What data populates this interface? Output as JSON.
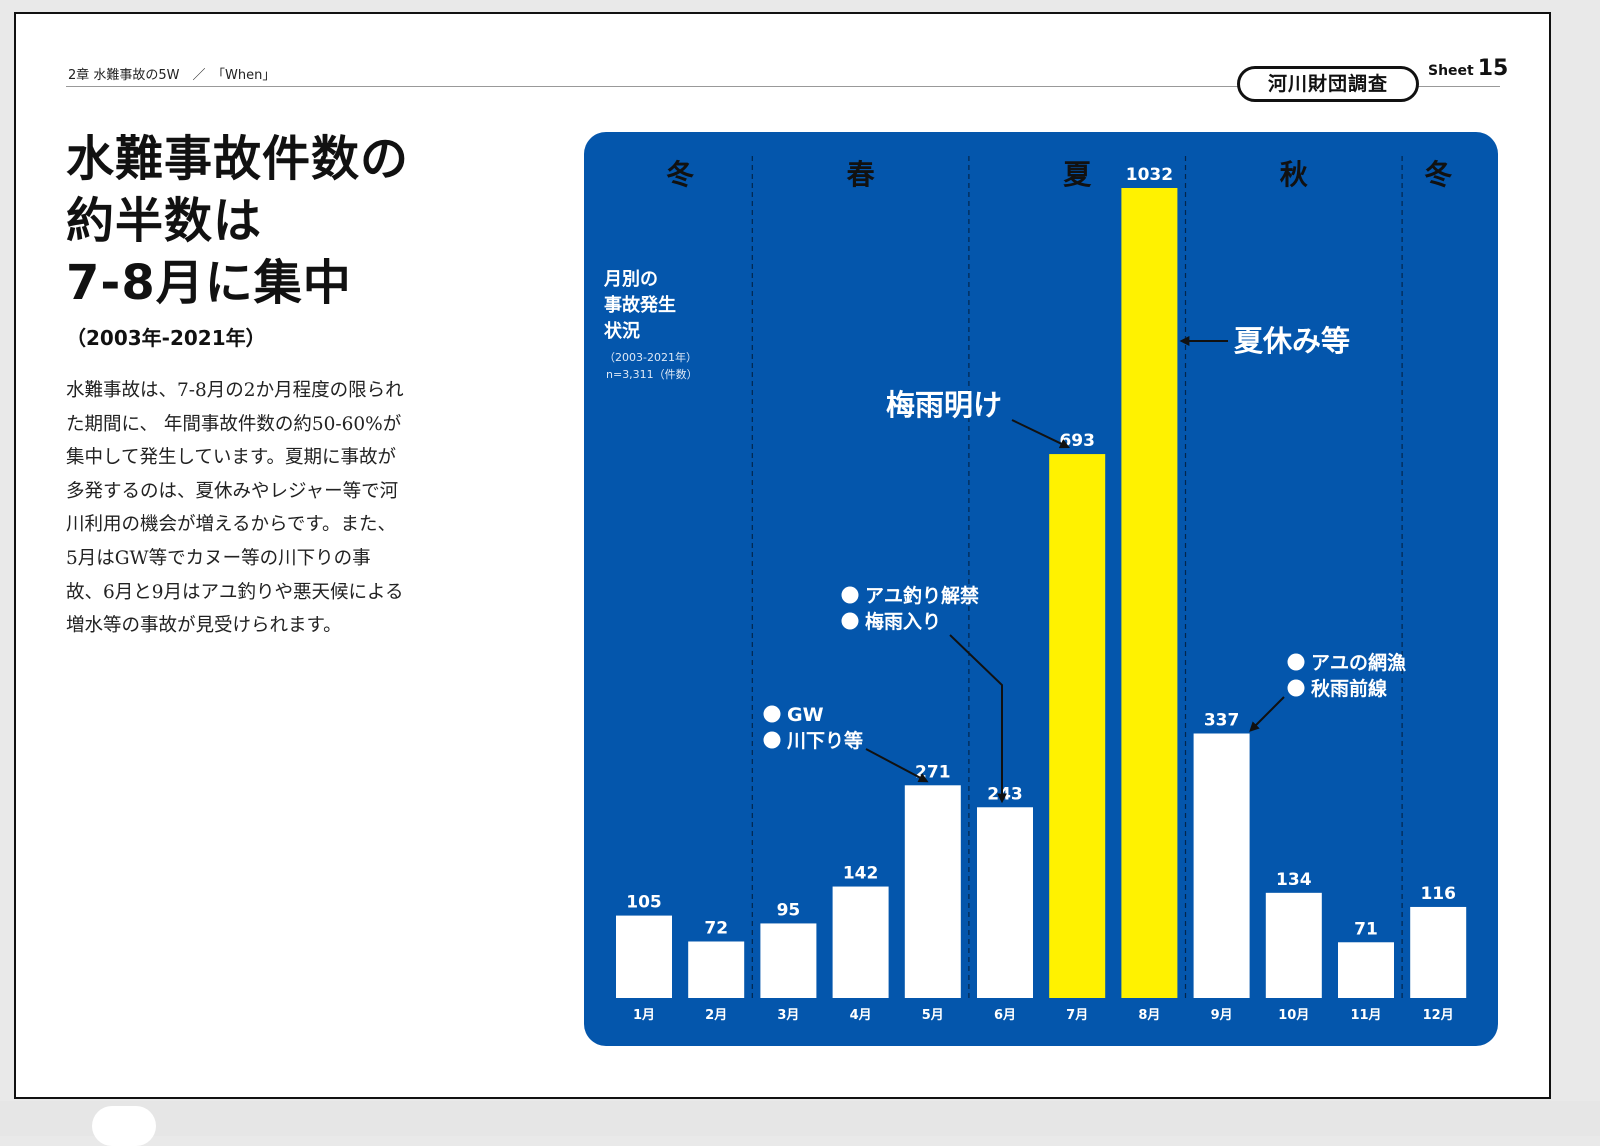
{
  "header": {
    "breadcrumb": "2章 水難事故の5W　／　「When」",
    "source_badge": "河川財団調査",
    "sheet_label": "Sheet",
    "sheet_number": "15"
  },
  "article": {
    "title_lines": [
      "水難事故件数の",
      "約半数は",
      "7-8月に集中"
    ],
    "period": "（2003年-2021年）",
    "body": "水難事故は、7-8月の2か月程度の限られた期間に、 年間事故件数の約50-60%が集中して発生しています。夏期に事故が多発するのは、夏休みやレジャー等で河川利用の機会が増えるからです。また、5月はGW等でカヌー等の川下りの事故、6月と9月はアユ釣りや悪天候による増水等の事故が見受けられます。"
  },
  "chart_data": {
    "type": "bar",
    "title_lines": [
      "月別の",
      "事故発生",
      "状況"
    ],
    "subtitle_lines": [
      "（2003-2021年）",
      "n=3,311（件数）"
    ],
    "categories": [
      "1月",
      "2月",
      "3月",
      "4月",
      "5月",
      "6月",
      "7月",
      "8月",
      "9月",
      "10月",
      "11月",
      "12月"
    ],
    "values": [
      105,
      72,
      95,
      142,
      271,
      243,
      693,
      1032,
      337,
      134,
      71,
      116
    ],
    "highlight_categories": [
      "7月",
      "8月"
    ],
    "ylim": [
      0,
      1032
    ],
    "grid": false,
    "seasons": [
      {
        "label": "冬",
        "months": [
          "1月",
          "2月"
        ]
      },
      {
        "label": "春",
        "months": [
          "3月",
          "4月",
          "5月"
        ]
      },
      {
        "label": "夏",
        "months": [
          "6月",
          "7月",
          "8月"
        ]
      },
      {
        "label": "秋",
        "months": [
          "9月",
          "10月",
          "11月"
        ]
      },
      {
        "label": "冬",
        "months": [
          "12月"
        ]
      }
    ],
    "annotations": [
      {
        "lines": [
          "夏休み等"
        ],
        "bullets": false,
        "target": "8月"
      },
      {
        "lines": [
          "梅雨明け"
        ],
        "bullets": false,
        "target": "7月"
      },
      {
        "lines": [
          "アユ釣り解禁",
          "梅雨入り"
        ],
        "bullets": true,
        "target": "6月"
      },
      {
        "lines": [
          "GW",
          "川下り等"
        ],
        "bullets": true,
        "target": "5月"
      },
      {
        "lines": [
          "アユの網漁",
          "秋雨前線"
        ],
        "bullets": true,
        "target": "9月"
      }
    ]
  },
  "colors": {
    "panel_blue": "#0456ac",
    "bar_white": "#ffffff",
    "bar_highlight": "#fff200",
    "text_dark": "#111111"
  }
}
